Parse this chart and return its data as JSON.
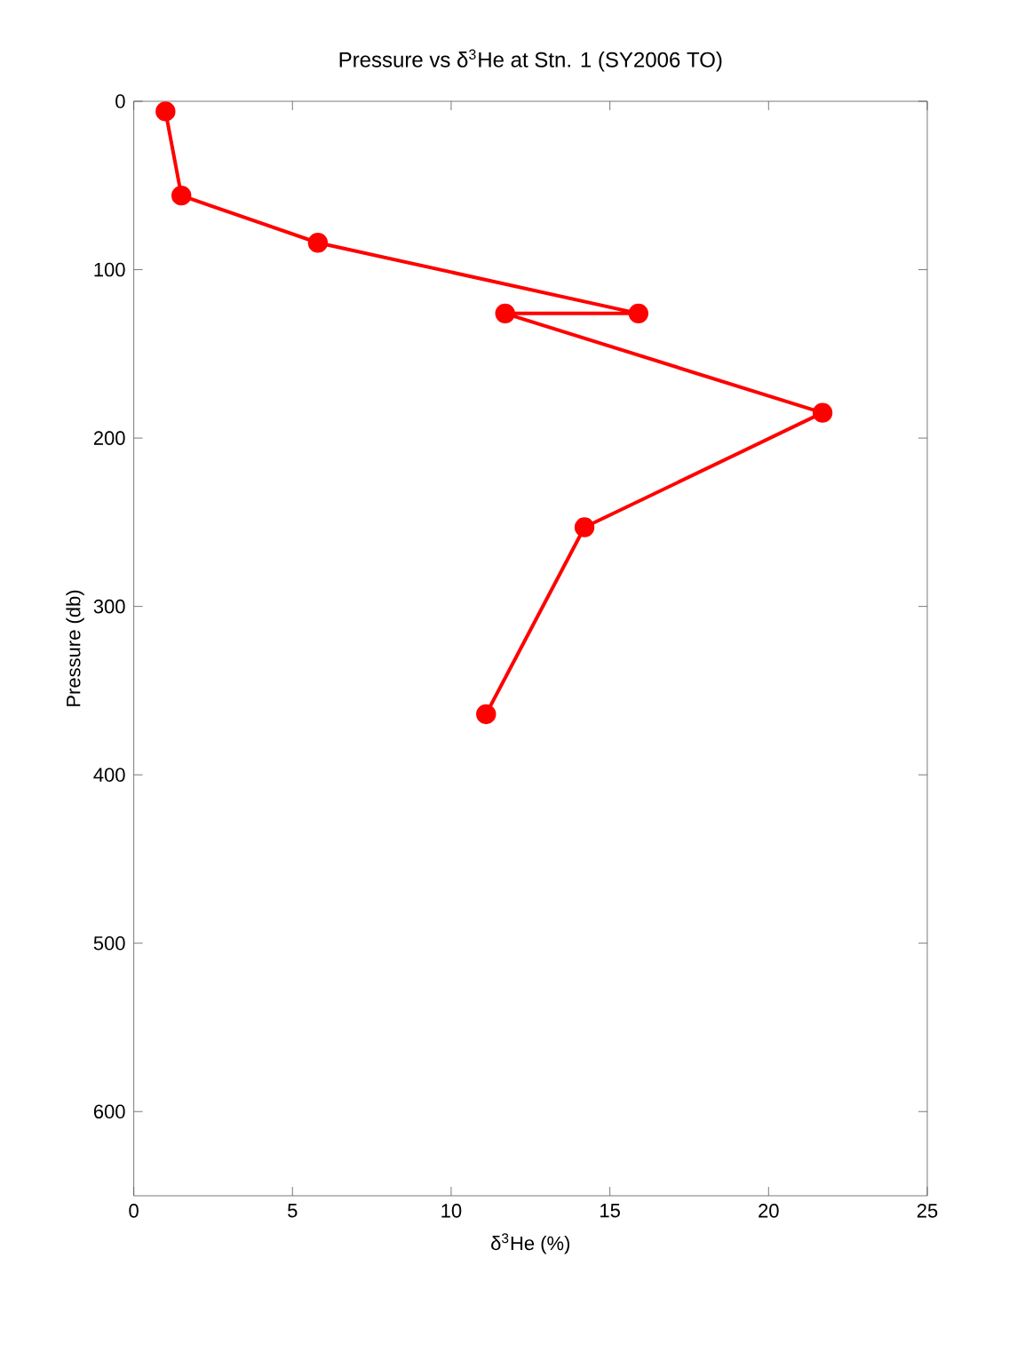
{
  "chart_data": {
    "type": "line",
    "title": "Pressure vs δ$^{3}$He at Stn. 1 (SY2006 TO)",
    "xlabel": "δ$^{3}$He (%)",
    "ylabel": "Pressure (db)",
    "x": [
      1.0,
      1.5,
      5.8,
      15.9,
      11.7,
      21.7,
      14.2,
      11.1
    ],
    "values": [
      6,
      56,
      84,
      126,
      126,
      185,
      253,
      364
    ],
    "color": "#ff0000",
    "marker": "circle",
    "line_style": "solid",
    "xlim": [
      0,
      25
    ],
    "xticks": [
      0,
      5,
      10,
      15,
      20,
      25
    ],
    "ylim": [
      650,
      0
    ],
    "yticks": [
      0,
      100,
      200,
      300,
      400,
      500,
      600
    ]
  }
}
